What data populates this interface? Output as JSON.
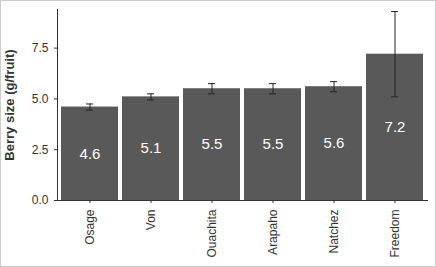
{
  "chart_data": {
    "type": "bar",
    "y_label": "Berry size (g/fruit)",
    "categories": [
      "Osage",
      "Von",
      "Ouachita",
      "Arapaho",
      "Natchez",
      "Freedom"
    ],
    "values": [
      4.6,
      5.1,
      5.5,
      5.5,
      5.6,
      7.2
    ],
    "errors": [
      0.15,
      0.15,
      0.25,
      0.25,
      0.25,
      2.1
    ],
    "color": "#595959",
    "ylim": [
      0,
      9.4
    ],
    "yticks": [
      {
        "value": 0,
        "label": "0.0"
      },
      {
        "value": 2.5,
        "label": "2.5"
      },
      {
        "value": 5,
        "label": "5.0"
      },
      {
        "value": 7.5,
        "label": "7.5"
      }
    ],
    "data_labels": true
  }
}
